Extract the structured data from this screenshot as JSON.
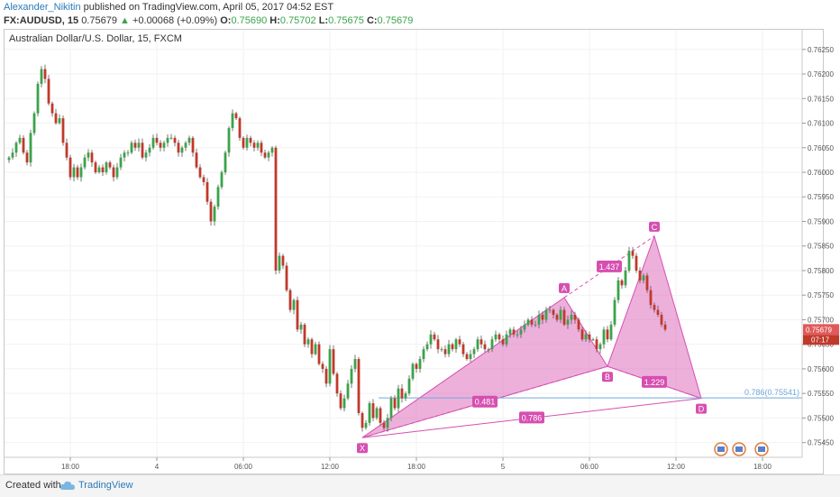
{
  "header": {
    "user": "Alexander_Nikitin",
    "published": "published on TradingView.com, April 05, 2017 04:52 EST"
  },
  "symbol_line": {
    "symbol": "FX:AUDUSD, 15",
    "last": "0.75679",
    "change": "+0.00068 (+0.09%)",
    "open_label": "O:",
    "open": "0.75690",
    "high_label": "H:",
    "high": "0.75702",
    "low_label": "L:",
    "low": "0.75675",
    "close_label": "C:",
    "close": "0.75679"
  },
  "chart_title": "Australian Dollar/U.S. Dollar, 15, FXCM",
  "footer": {
    "created_with": "Created with",
    "brand": "TradingView"
  },
  "colors": {
    "up": "#3aa34a",
    "down": "#c0392b",
    "pattern": "#d64fb0",
    "fib_line": "#6fa8dc",
    "price_tag": "#e05a5a"
  },
  "chart_data": {
    "type": "candlestick",
    "y_axis": {
      "ticks": [
        "0.76250",
        "0.76200",
        "0.76150",
        "0.76100",
        "0.76050",
        "0.76000",
        "0.75950",
        "0.75900",
        "0.75850",
        "0.75800",
        "0.75750",
        "0.75700",
        "0.75650",
        "0.75600",
        "0.75550",
        "0.75500",
        "0.75450"
      ],
      "range": [
        0.7542,
        0.7629
      ]
    },
    "x_axis": {
      "ticks": [
        {
          "label": "18:00",
          "bar": 17
        },
        {
          "label": "4",
          "bar": 41
        },
        {
          "label": "06:00",
          "bar": 65
        },
        {
          "label": "12:00",
          "bar": 89
        },
        {
          "label": "18:00",
          "bar": 113
        },
        {
          "label": "5",
          "bar": 137
        },
        {
          "label": "06:00",
          "bar": 161
        },
        {
          "label": "12:00",
          "bar": 185
        },
        {
          "label": "18:00",
          "bar": 209
        }
      ]
    },
    "current_price": {
      "label": "0.75679",
      "countdown": "07:17"
    },
    "fib_level": {
      "label": "0.786(0.75541)",
      "value": 0.75541
    },
    "pattern": {
      "points": [
        {
          "name": "X",
          "bar": 98,
          "price": 0.7546
        },
        {
          "name": "A",
          "bar": 154,
          "price": 0.75745
        },
        {
          "name": "B",
          "bar": 166,
          "price": 0.75605
        },
        {
          "name": "C",
          "bar": 179,
          "price": 0.7587
        },
        {
          "name": "D",
          "bar": 192,
          "price": 0.7554
        }
      ],
      "ratios": [
        {
          "label": "1.437",
          "value": 1.437
        },
        {
          "label": "0.481",
          "value": 0.481
        },
        {
          "label": "1.229",
          "value": 1.229
        },
        {
          "label": "0.786",
          "value": 0.786
        }
      ]
    },
    "closes": [
      0.7603,
      0.7604,
      0.7606,
      0.7607,
      0.7604,
      0.7602,
      0.7608,
      0.7612,
      0.7618,
      0.7621,
      0.7619,
      0.7614,
      0.7612,
      0.761,
      0.7611,
      0.7606,
      0.7603,
      0.7599,
      0.7601,
      0.7599,
      0.7601,
      0.7603,
      0.7604,
      0.7602,
      0.76,
      0.7601,
      0.76,
      0.7602,
      0.7601,
      0.7599,
      0.7601,
      0.7603,
      0.7604,
      0.7604,
      0.7606,
      0.7605,
      0.7606,
      0.7603,
      0.7604,
      0.7605,
      0.7607,
      0.7606,
      0.7605,
      0.7606,
      0.7607,
      0.7607,
      0.7606,
      0.7604,
      0.7605,
      0.7606,
      0.7607,
      0.7604,
      0.7601,
      0.7599,
      0.7598,
      0.7594,
      0.759,
      0.7593,
      0.7597,
      0.76,
      0.7604,
      0.7609,
      0.7612,
      0.7611,
      0.7607,
      0.7605,
      0.7607,
      0.7606,
      0.7605,
      0.7606,
      0.7604,
      0.7603,
      0.7604,
      0.7605,
      0.758,
      0.7583,
      0.7581,
      0.7576,
      0.7572,
      0.7574,
      0.7568,
      0.7569,
      0.7565,
      0.7566,
      0.7563,
      0.7565,
      0.7561,
      0.756,
      0.7557,
      0.7564,
      0.7559,
      0.7555,
      0.7552,
      0.7554,
      0.7557,
      0.756,
      0.7562,
      0.7551,
      0.7548,
      0.7549,
      0.7553,
      0.755,
      0.7552,
      0.7549,
      0.7548,
      0.755,
      0.7554,
      0.7552,
      0.7556,
      0.7554,
      0.7555,
      0.7558,
      0.7561,
      0.756,
      0.7562,
      0.7564,
      0.7565,
      0.7567,
      0.7566,
      0.7564,
      0.7564,
      0.7563,
      0.7565,
      0.7564,
      0.7566,
      0.7565,
      0.7563,
      0.7562,
      0.7563,
      0.7564,
      0.7566,
      0.7565,
      0.7564,
      0.7564,
      0.7566,
      0.7567,
      0.7566,
      0.7565,
      0.7567,
      0.7568,
      0.7567,
      0.7567,
      0.7568,
      0.7569,
      0.757,
      0.7569,
      0.7569,
      0.7571,
      0.757,
      0.7572,
      0.7572,
      0.7571,
      0.757,
      0.7572,
      0.7569,
      0.757,
      0.7571,
      0.757,
      0.7568,
      0.7566,
      0.7567,
      0.7566,
      0.7566,
      0.7564,
      0.7565,
      0.7568,
      0.7566,
      0.7569,
      0.7574,
      0.7578,
      0.7577,
      0.758,
      0.7584,
      0.7583,
      0.758,
      0.7578,
      0.7579,
      0.7576,
      0.7573,
      0.7572,
      0.7571,
      0.7569,
      0.7568
    ]
  }
}
